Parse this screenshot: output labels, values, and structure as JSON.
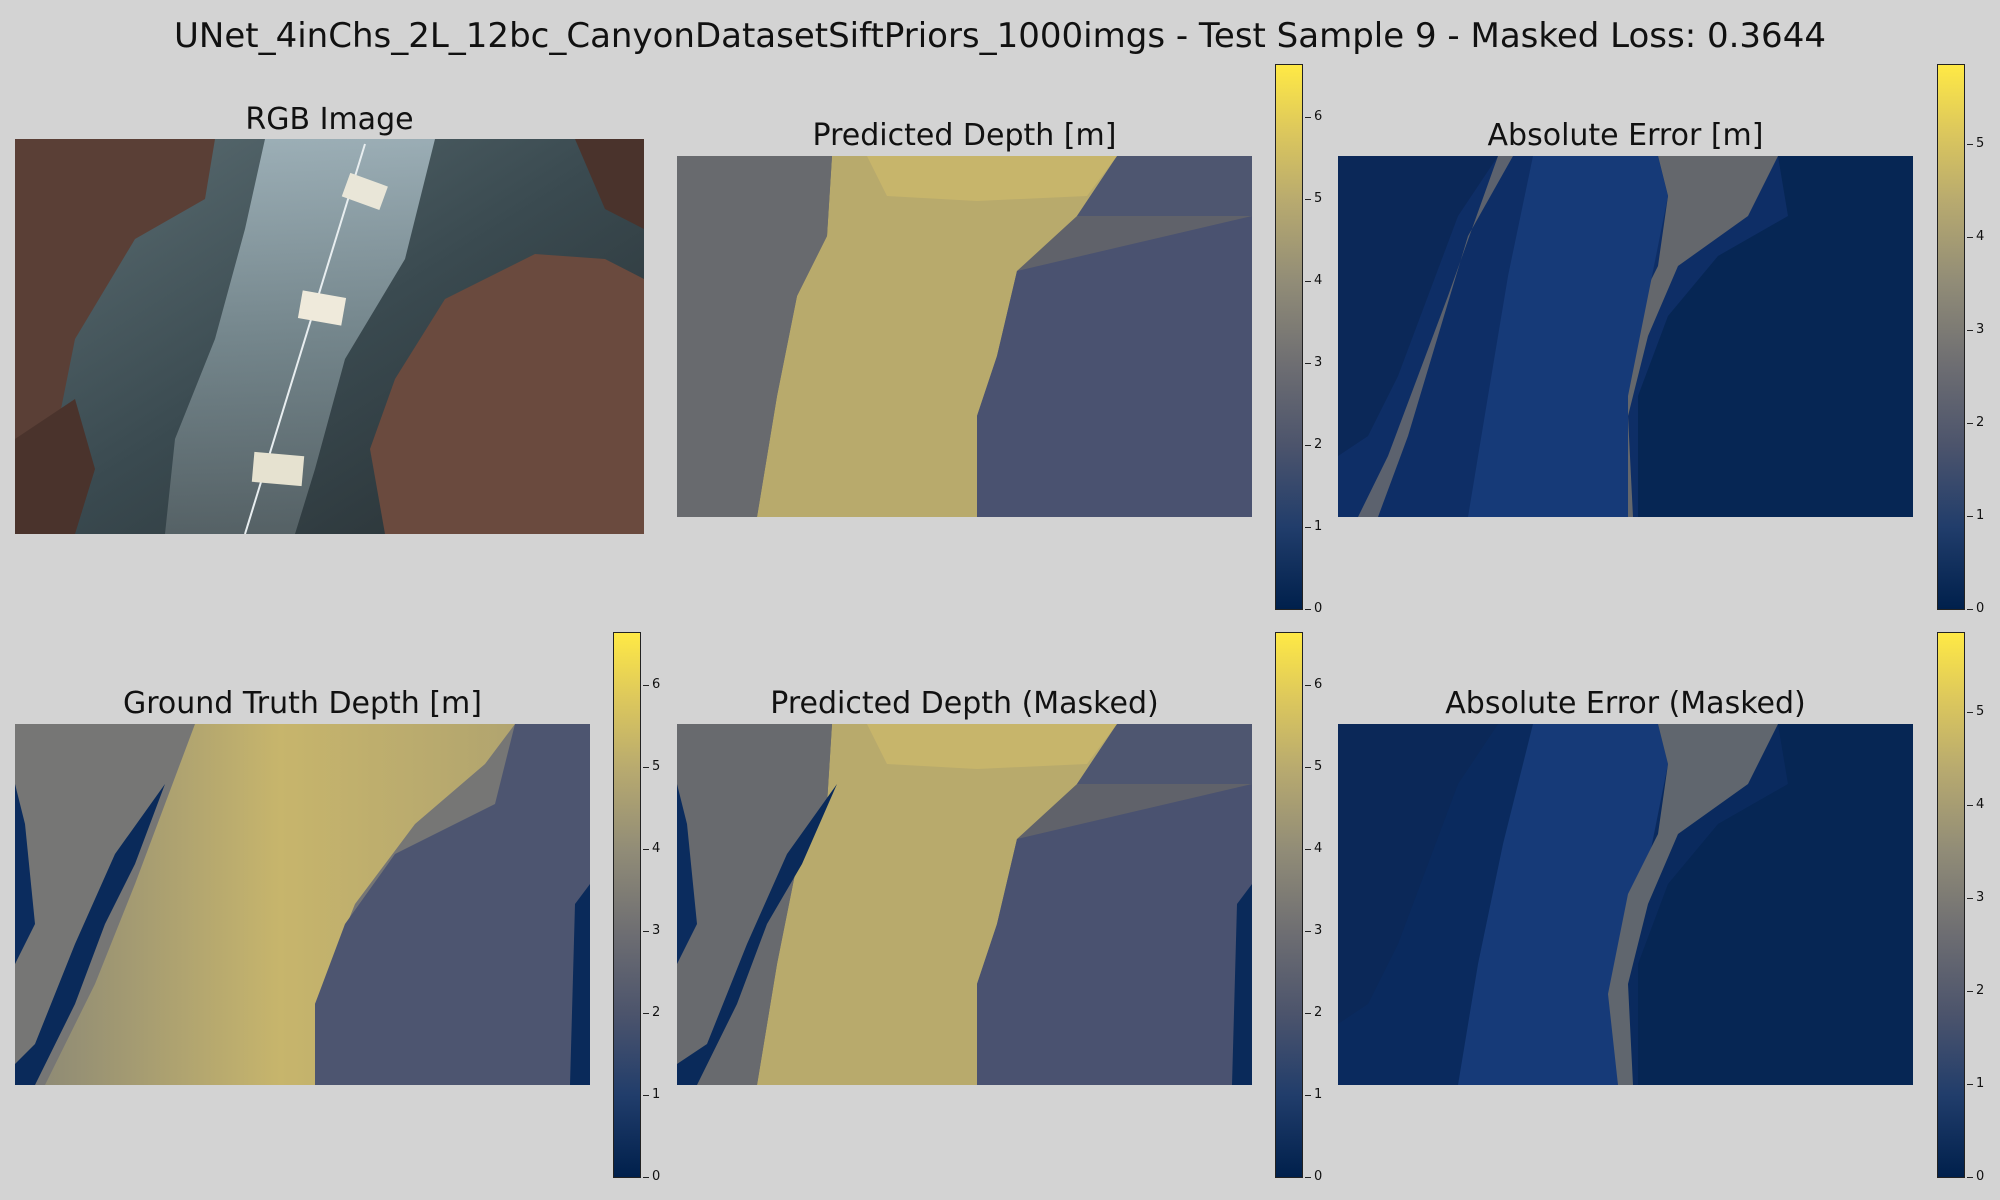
{
  "figure": {
    "suptitle": "UNet_4inChs_2L_12bc_CanyonDatasetSiftPriors_1000imgs - Test Sample 9 - Masked Loss: 0.3644"
  },
  "panels": {
    "rgb": {
      "title": "RGB Image"
    },
    "pred": {
      "title": "Predicted Depth [m]"
    },
    "err": {
      "title": "Absolute Error [m]"
    },
    "gt": {
      "title": "Ground Truth Depth [m]"
    },
    "pred_masked": {
      "title": "Predicted Depth (Masked)"
    },
    "err_masked": {
      "title": "Absolute Error (Masked)"
    }
  },
  "colorbars": {
    "depth_ticks": [
      "0",
      "1",
      "2",
      "3",
      "4",
      "5",
      "6"
    ],
    "error_ticks": [
      "0",
      "1",
      "2",
      "3",
      "4",
      "5"
    ],
    "colormap": "cividis",
    "depth_max": 6.6,
    "error_max": 5.85
  }
}
